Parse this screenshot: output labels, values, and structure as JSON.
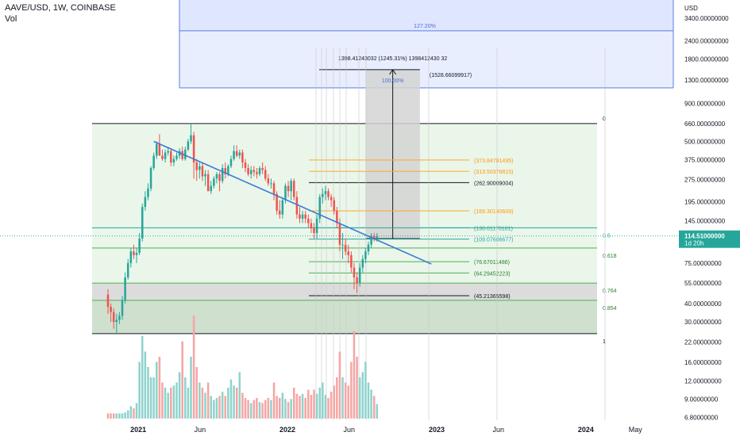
{
  "header": {
    "title": "AAVE/USD, 1W, COINBASE",
    "subtitle": "Vol"
  },
  "colors": {
    "up": "#26a69a",
    "down": "#ef5350",
    "vol_up": "#8fd3cd",
    "vol_down": "#f5a6a4",
    "trendline": "#3a7bd5",
    "fib_top_zone": "#dbe3ff",
    "fib_green_zone": "#e8f5e9",
    "price_badge": "#26a69a"
  },
  "price_axis": {
    "currency": "USD",
    "labels": [
      "3400.00000000",
      "2400.00000000",
      "1800.00000000",
      "1300.00000000",
      "900.00000000",
      "660.00000000",
      "500.00000000",
      "375.00000000",
      "275.00000000",
      "195.00000000",
      "145.00000000",
      "75.00000000",
      "55.00000000",
      "40.00000000",
      "30.00000000",
      "22.00000000",
      "16.00000000",
      "12.00000000",
      "9.00000000",
      "6.80000000"
    ],
    "last_price": "114.51000000",
    "countdown": "1d 20h"
  },
  "time_axis": {
    "labels": [
      "2021",
      "Jun",
      "2022",
      "Jun",
      "2023",
      "Jun",
      "2024",
      "May"
    ]
  },
  "fib_extension": {
    "level_1272_label": "127.20%",
    "level_100_label": "100.00%",
    "measure_text": "1398.41243032 (1245.31%) 1398412430 32",
    "target_label": "(1528.66099917)"
  },
  "fib_retracement": {
    "level_labels": [
      "0",
      "0.5",
      "0.618",
      "0.764",
      "0.854",
      "1"
    ]
  },
  "fib_levels": {
    "labels": [
      "(373.84781495)",
      "(313.50378815)",
      "(262.90009004)",
      "(169.30140609)",
      "(130.01170101)",
      "(109.07606677)",
      "(76.67011486)",
      "(64.29452223)",
      "(45.21365598)"
    ]
  },
  "chart_data": {
    "type": "candlestick",
    "title": "AAVE/USD, 1W, COINBASE",
    "scale": "log",
    "ylim": [
      6.5,
      4200
    ],
    "xlim": [
      "2020-10-19",
      "2024-05-20"
    ],
    "x": [
      "2020-10-19",
      "2020-10-26",
      "2020-11-02",
      "2020-11-09",
      "2020-11-16",
      "2020-11-23",
      "2020-11-30",
      "2020-12-07",
      "2020-12-14",
      "2020-12-21",
      "2020-12-28",
      "2021-01-04",
      "2021-01-11",
      "2021-01-18",
      "2021-01-25",
      "2021-02-01",
      "2021-02-08",
      "2021-02-15",
      "2021-02-22",
      "2021-03-01",
      "2021-03-08",
      "2021-03-15",
      "2021-03-22",
      "2021-03-29",
      "2021-04-05",
      "2021-04-12",
      "2021-04-19",
      "2021-04-26",
      "2021-05-03",
      "2021-05-10",
      "2021-05-17",
      "2021-05-24",
      "2021-05-31",
      "2021-06-07",
      "2021-06-14",
      "2021-06-21",
      "2021-06-28",
      "2021-07-05",
      "2021-07-12",
      "2021-07-19",
      "2021-07-26",
      "2021-08-02",
      "2021-08-09",
      "2021-08-16",
      "2021-08-23",
      "2021-08-30",
      "2021-09-06",
      "2021-09-13",
      "2021-09-20",
      "2021-09-27",
      "2021-10-04",
      "2021-10-11",
      "2021-10-18",
      "2021-10-25",
      "2021-11-01",
      "2021-11-08",
      "2021-11-15",
      "2021-11-22",
      "2021-11-29",
      "2021-12-06",
      "2021-12-13",
      "2021-12-20",
      "2021-12-27",
      "2022-01-03",
      "2022-01-10",
      "2022-01-17",
      "2022-01-24",
      "2022-01-31",
      "2022-02-07",
      "2022-02-14",
      "2022-02-21",
      "2022-02-28",
      "2022-03-07",
      "2022-03-14",
      "2022-03-21",
      "2022-03-28",
      "2022-04-04",
      "2022-04-11",
      "2022-04-18",
      "2022-04-25",
      "2022-05-02",
      "2022-05-09",
      "2022-05-16",
      "2022-05-23",
      "2022-05-30",
      "2022-06-06",
      "2022-06-13",
      "2022-06-20",
      "2022-06-27",
      "2022-07-04",
      "2022-07-11",
      "2022-07-18",
      "2022-07-25",
      "2022-08-01",
      "2022-08-08"
    ],
    "series": [
      {
        "name": "open",
        "values": [
          46,
          38,
          35,
          30,
          31,
          33,
          42,
          60,
          75,
          90,
          85,
          88,
          110,
          180,
          210,
          240,
          330,
          400,
          480,
          400,
          380,
          420,
          430,
          360,
          380,
          400,
          430,
          380,
          440,
          500,
          550,
          360,
          320,
          340,
          290,
          300,
          230,
          250,
          280,
          300,
          270,
          330,
          300,
          340,
          380,
          430,
          400,
          420,
          360,
          330,
          300,
          320,
          310,
          300,
          330,
          320,
          280,
          260,
          260,
          220,
          170,
          160,
          200,
          250,
          230,
          270,
          210,
          160,
          150,
          160,
          150,
          140,
          130,
          120,
          150,
          210,
          220,
          230,
          210,
          200,
          170,
          140,
          100,
          100,
          90,
          85,
          70,
          60,
          55,
          70,
          80,
          90,
          100,
          115,
          110
        ]
      },
      {
        "name": "high",
        "values": [
          50,
          40,
          37,
          34,
          35,
          45,
          65,
          80,
          95,
          100,
          95,
          120,
          190,
          230,
          260,
          340,
          420,
          500,
          560,
          440,
          440,
          460,
          450,
          400,
          420,
          450,
          460,
          460,
          520,
          660,
          580,
          380,
          360,
          360,
          320,
          320,
          270,
          290,
          310,
          310,
          350,
          360,
          350,
          400,
          470,
          470,
          440,
          440,
          380,
          350,
          340,
          340,
          330,
          340,
          360,
          340,
          300,
          280,
          270,
          230,
          200,
          210,
          260,
          270,
          280,
          280,
          230,
          180,
          170,
          170,
          160,
          150,
          140,
          160,
          220,
          240,
          250,
          240,
          220,
          210,
          180,
          150,
          120,
          110,
          100,
          90,
          75,
          65,
          75,
          85,
          95,
          105,
          120,
          120,
          120
        ]
      },
      {
        "name": "low",
        "values": [
          34,
          30,
          27,
          25,
          29,
          31,
          40,
          58,
          70,
          80,
          75,
          85,
          105,
          170,
          200,
          230,
          320,
          380,
          400,
          370,
          360,
          400,
          340,
          340,
          370,
          380,
          370,
          370,
          430,
          480,
          280,
          270,
          280,
          270,
          250,
          230,
          220,
          240,
          260,
          230,
          260,
          280,
          290,
          330,
          370,
          390,
          380,
          330,
          310,
          290,
          280,
          290,
          280,
          290,
          300,
          270,
          250,
          240,
          200,
          160,
          150,
          150,
          190,
          210,
          200,
          200,
          150,
          140,
          140,
          140,
          130,
          120,
          110,
          110,
          140,
          190,
          200,
          200,
          180,
          160,
          130,
          90,
          80,
          85,
          75,
          65,
          50,
          47,
          52,
          65,
          75,
          85,
          95,
          105,
          105
        ]
      },
      {
        "name": "close",
        "values": [
          38,
          35,
          30,
          31,
          33,
          42,
          60,
          75,
          90,
          85,
          88,
          110,
          180,
          210,
          240,
          330,
          400,
          480,
          400,
          380,
          420,
          430,
          360,
          380,
          400,
          430,
          380,
          440,
          500,
          550,
          360,
          320,
          340,
          290,
          300,
          230,
          250,
          280,
          300,
          270,
          330,
          300,
          340,
          380,
          430,
          400,
          420,
          360,
          330,
          300,
          320,
          310,
          300,
          330,
          320,
          280,
          260,
          260,
          220,
          170,
          160,
          200,
          250,
          230,
          270,
          210,
          160,
          150,
          160,
          150,
          140,
          130,
          120,
          150,
          210,
          220,
          230,
          210,
          200,
          170,
          140,
          100,
          100,
          90,
          85,
          70,
          60,
          55,
          70,
          80,
          90,
          100,
          115,
          110,
          114.51
        ]
      },
      {
        "name": "volume",
        "values": [
          0.5,
          0.5,
          0.5,
          0.5,
          0.5,
          0.5,
          0.6,
          0.8,
          1.2,
          1.0,
          1.5,
          5.5,
          8.0,
          6.5,
          5.0,
          4.0,
          4.0,
          5.5,
          6.0,
          3.5,
          3.0,
          2.5,
          3.0,
          3.2,
          3.5,
          4.5,
          7.5,
          4.0,
          3.0,
          6.0,
          10.0,
          5.0,
          3.5,
          3.0,
          2.5,
          3.5,
          2.2,
          1.8,
          2.0,
          2.2,
          2.6,
          2.2,
          3.0,
          3.8,
          3.2,
          3.0,
          4.5,
          2.5,
          2.0,
          1.8,
          1.5,
          1.8,
          2.0,
          1.6,
          1.5,
          1.8,
          2.0,
          1.8,
          3.5,
          2.2,
          2.0,
          2.5,
          1.9,
          1.6,
          1.9,
          3.0,
          2.4,
          2.2,
          2.4,
          2.0,
          2.8,
          2.3,
          2.8,
          2.4,
          3.0,
          3.5,
          2.3,
          2.0,
          2.6,
          3.2,
          4.0,
          6.5,
          4.0,
          3.5,
          3.2,
          5.5,
          8.5,
          6.0,
          4.0,
          4.5,
          5.5,
          3.5,
          2.8,
          2.2,
          1.4
        ]
      }
    ],
    "trendline": {
      "x1": "2021-02-08",
      "y1": 500,
      "x2": "2022-12-19",
      "y2": 74
    },
    "fib_levels": [
      373.84781495,
      313.50378815,
      262.90009004,
      169.30140609,
      130.01170101,
      109.07606677,
      76.67011486,
      64.29452223,
      45.21365598
    ],
    "fib_retracement": {
      "x1": "2020-10-19",
      "x2": "2024-03-18",
      "level_0": 660,
      "level_05": 130,
      "level_0618": 95,
      "level_0764": 55,
      "level_0854": 42,
      "level_1": 25,
      "lines": [
        660,
        130,
        95,
        55,
        42,
        25
      ]
    },
    "fib_extension": {
      "x1": "2020-12-07",
      "x2": "2024-03-18",
      "level_1272": 2800,
      "level_100_low": 1150,
      "level_100_high": 4200
    },
    "projection": {
      "x1": "2022-07-11",
      "x2": "2022-11-21",
      "y_low": 110,
      "y_high": 1528.66099917,
      "measure_pct": 1245.31
    },
    "fib_small": {
      "x1": "2022-02-21",
      "x2": "2022-11-21",
      "levels": [
        373.84781495,
        313.50378815,
        262.90009004,
        169.30140609,
        130.01170101,
        109.07606677,
        76.67011486,
        64.29452223,
        45.21365598
      ]
    }
  }
}
